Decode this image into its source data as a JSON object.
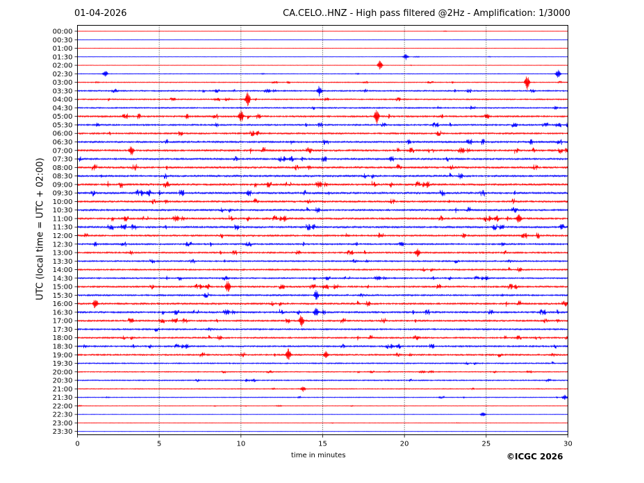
{
  "header": {
    "date": "01-04-2026",
    "title": "CA.CELO..HNZ - High pass filtered @2Hz - Amplification: 1/3000"
  },
  "footer": {
    "copyright": "©ICGC 2026"
  },
  "colors": {
    "red": "#ff0000",
    "blue": "#0000ff",
    "grid": "#000000"
  },
  "chart_data": {
    "type": "line",
    "xlabel": "time in minutes",
    "ylabel": "UTC (local time = UTC + 02:00)",
    "xlim": [
      0,
      30
    ],
    "xticks": [
      0,
      5,
      10,
      15,
      20,
      25,
      30
    ],
    "grid": "vertical dotted at 5-minute intervals",
    "row_labels": [
      "00:00",
      "00:30",
      "01:00",
      "01:30",
      "02:00",
      "02:30",
      "03:00",
      "03:30",
      "04:00",
      "04:30",
      "05:00",
      "05:30",
      "06:00",
      "06:30",
      "07:00",
      "07:30",
      "08:00",
      "08:30",
      "09:00",
      "09:30",
      "10:00",
      "10:30",
      "11:00",
      "11:30",
      "12:00",
      "12:30",
      "13:00",
      "13:30",
      "14:00",
      "14:30",
      "15:00",
      "15:30",
      "16:00",
      "16:30",
      "17:00",
      "17:30",
      "18:00",
      "18:30",
      "19:00",
      "19:30",
      "20:00",
      "20:30",
      "21:00",
      "21:30",
      "22:00",
      "22:30",
      "23:00",
      "23:30"
    ],
    "row_colors": [
      "red",
      "blue"
    ],
    "row_activity": [
      0.05,
      0.05,
      0.05,
      0.08,
      0.08,
      0.15,
      0.25,
      0.45,
      0.4,
      0.45,
      0.6,
      0.55,
      0.6,
      0.65,
      0.7,
      0.65,
      0.75,
      0.7,
      0.75,
      0.75,
      0.7,
      0.65,
      0.7,
      0.7,
      0.65,
      0.55,
      0.55,
      0.5,
      0.55,
      0.5,
      0.6,
      0.6,
      0.65,
      0.65,
      0.6,
      0.55,
      0.55,
      0.55,
      0.55,
      0.4,
      0.3,
      0.35,
      0.25,
      0.2,
      0.1,
      0.08,
      0.06,
      0.04
    ],
    "events": [
      {
        "row": 3,
        "minute": 20.1,
        "amplitude": 0.3
      },
      {
        "row": 4,
        "minute": 18.5,
        "amplitude": 0.5
      },
      {
        "row": 5,
        "minute": 1.7,
        "amplitude": 0.4
      },
      {
        "row": 5,
        "minute": 29.4,
        "amplitude": 0.5
      },
      {
        "row": 6,
        "minute": 27.5,
        "amplitude": 0.9
      },
      {
        "row": 7,
        "minute": 14.8,
        "amplitude": 0.6
      },
      {
        "row": 8,
        "minute": 10.4,
        "amplitude": 0.8
      },
      {
        "row": 10,
        "minute": 18.3,
        "amplitude": 0.9
      },
      {
        "row": 10,
        "minute": 10.0,
        "amplitude": 0.7
      },
      {
        "row": 14,
        "minute": 3.3,
        "amplitude": 0.6
      },
      {
        "row": 22,
        "minute": 27.0,
        "amplitude": 0.6
      },
      {
        "row": 26,
        "minute": 20.8,
        "amplitude": 0.5
      },
      {
        "row": 30,
        "minute": 9.2,
        "amplitude": 0.7
      },
      {
        "row": 31,
        "minute": 14.6,
        "amplitude": 0.6
      },
      {
        "row": 32,
        "minute": 1.1,
        "amplitude": 0.6
      },
      {
        "row": 33,
        "minute": 14.6,
        "amplitude": 0.5
      },
      {
        "row": 34,
        "minute": 13.7,
        "amplitude": 0.7
      },
      {
        "row": 38,
        "minute": 12.9,
        "amplitude": 0.7
      },
      {
        "row": 38,
        "minute": 15.2,
        "amplitude": 0.5
      },
      {
        "row": 42,
        "minute": 13.8,
        "amplitude": 0.3
      },
      {
        "row": 43,
        "minute": 29.8,
        "amplitude": 0.3
      },
      {
        "row": 45,
        "minute": 24.8,
        "amplitude": 0.25
      }
    ]
  }
}
